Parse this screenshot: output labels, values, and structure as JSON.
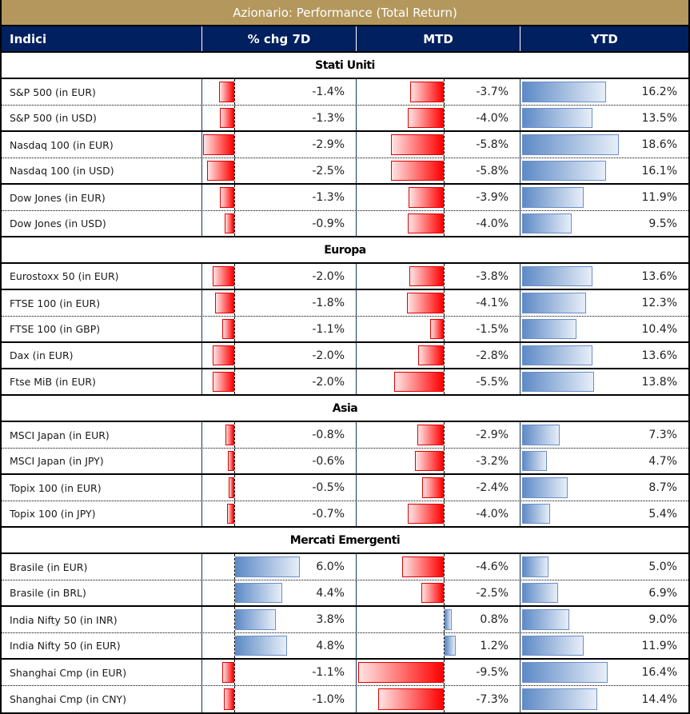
{
  "title": "Azionario: Performance (Total Return)",
  "columns": [
    "Indici",
    "% chg 7D",
    "MTD",
    "YTD"
  ],
  "colors": {
    "title_bg": "#b3975c",
    "header_bg": "#002060",
    "negative_bar": "#ff0000",
    "positive_bar": "#5e8ac6"
  },
  "sections": [
    {
      "name": "Stati Uniti",
      "rows": [
        {
          "label": "S&P 500 (in EUR)",
          "d7": -1.4,
          "mtd": -3.7,
          "ytd": 16.2,
          "d7_text": "-1.4%",
          "mtd_text": "-3.7%",
          "ytd_text": "16.2%",
          "sep": "dotted"
        },
        {
          "label": "S&P 500 (in USD)",
          "d7": -1.3,
          "mtd": -4.0,
          "ytd": 13.5,
          "d7_text": "-1.3%",
          "mtd_text": "-4.0%",
          "ytd_text": "13.5%",
          "sep": "solid"
        },
        {
          "label": "Nasdaq 100 (in EUR)",
          "d7": -2.9,
          "mtd": -5.8,
          "ytd": 18.6,
          "d7_text": "-2.9%",
          "mtd_text": "-5.8%",
          "ytd_text": "18.6%",
          "sep": "dotted"
        },
        {
          "label": "Nasdaq 100 (in USD)",
          "d7": -2.5,
          "mtd": -5.8,
          "ytd": 16.1,
          "d7_text": "-2.5%",
          "mtd_text": "-5.8%",
          "ytd_text": "16.1%",
          "sep": "solid"
        },
        {
          "label": "Dow Jones (in EUR)",
          "d7": -1.3,
          "mtd": -3.9,
          "ytd": 11.9,
          "d7_text": "-1.3%",
          "mtd_text": "-3.9%",
          "ytd_text": "11.9%",
          "sep": "dotted"
        },
        {
          "label": "Dow Jones (in USD)",
          "d7": -0.9,
          "mtd": -4.0,
          "ytd": 9.5,
          "d7_text": "-0.9%",
          "mtd_text": "-4.0%",
          "ytd_text": "9.5%",
          "sep": "solid"
        }
      ]
    },
    {
      "name": "Europa",
      "rows": [
        {
          "label": "Eurostoxx 50 (in EUR)",
          "d7": -2.0,
          "mtd": -3.8,
          "ytd": 13.6,
          "d7_text": "-2.0%",
          "mtd_text": "-3.8%",
          "ytd_text": "13.6%",
          "sep": "solid"
        },
        {
          "label": "FTSE 100 (in EUR)",
          "d7": -1.8,
          "mtd": -4.1,
          "ytd": 12.3,
          "d7_text": "-1.8%",
          "mtd_text": "-4.1%",
          "ytd_text": "12.3%",
          "sep": "dotted"
        },
        {
          "label": "FTSE 100 (in GBP)",
          "d7": -1.1,
          "mtd": -1.5,
          "ytd": 10.4,
          "d7_text": "-1.1%",
          "mtd_text": "-1.5%",
          "ytd_text": "10.4%",
          "sep": "solid"
        },
        {
          "label": "Dax (in EUR)",
          "d7": -2.0,
          "mtd": -2.8,
          "ytd": 13.6,
          "d7_text": "-2.0%",
          "mtd_text": "-2.8%",
          "ytd_text": "13.6%",
          "sep": "solid"
        },
        {
          "label": "Ftse MiB (in EUR)",
          "d7": -2.0,
          "mtd": -5.5,
          "ytd": 13.8,
          "d7_text": "-2.0%",
          "mtd_text": "-5.5%",
          "ytd_text": "13.8%",
          "sep": "solid"
        }
      ]
    },
    {
      "name": "Asia",
      "rows": [
        {
          "label": "MSCI Japan (in EUR)",
          "d7": -0.8,
          "mtd": -2.9,
          "ytd": 7.3,
          "d7_text": "-0.8%",
          "mtd_text": "-2.9%",
          "ytd_text": "7.3%",
          "sep": "dotted"
        },
        {
          "label": "MSCI Japan (in JPY)",
          "d7": -0.6,
          "mtd": -3.2,
          "ytd": 4.7,
          "d7_text": "-0.6%",
          "mtd_text": "-3.2%",
          "ytd_text": "4.7%",
          "sep": "solid"
        },
        {
          "label": "Topix 100 (in EUR)",
          "d7": -0.5,
          "mtd": -2.4,
          "ytd": 8.7,
          "d7_text": "-0.5%",
          "mtd_text": "-2.4%",
          "ytd_text": "8.7%",
          "sep": "dotted"
        },
        {
          "label": "Topix 100 (in JPY)",
          "d7": -0.7,
          "mtd": -4.0,
          "ytd": 5.4,
          "d7_text": "-0.7%",
          "mtd_text": "-4.0%",
          "ytd_text": "5.4%",
          "sep": "solid"
        }
      ]
    },
    {
      "name": "Mercati Emergenti",
      "rows": [
        {
          "label": "Brasile (in EUR)",
          "d7": 6.0,
          "mtd": -4.6,
          "ytd": 5.0,
          "d7_text": "6.0%",
          "mtd_text": "-4.6%",
          "ytd_text": "5.0%",
          "sep": "dotted"
        },
        {
          "label": "Brasile (in BRL)",
          "d7": 4.4,
          "mtd": -2.5,
          "ytd": 6.9,
          "d7_text": "4.4%",
          "mtd_text": "-2.5%",
          "ytd_text": "6.9%",
          "sep": "solid"
        },
        {
          "label": "India Nifty 50 (in INR)",
          "d7": 3.8,
          "mtd": 0.8,
          "ytd": 9.0,
          "d7_text": "3.8%",
          "mtd_text": "0.8%",
          "ytd_text": "9.0%",
          "sep": "dotted"
        },
        {
          "label": "India Nifty 50 (in EUR)",
          "d7": 4.8,
          "mtd": 1.2,
          "ytd": 11.9,
          "d7_text": "4.8%",
          "mtd_text": "1.2%",
          "ytd_text": "11.9%",
          "sep": "solid"
        },
        {
          "label": "Shanghai Cmp (in EUR)",
          "d7": -1.1,
          "mtd": -9.5,
          "ytd": 16.4,
          "d7_text": "-1.1%",
          "mtd_text": "-9.5%",
          "ytd_text": "16.4%",
          "sep": "dotted"
        },
        {
          "label": "Shanghai Cmp (in CNY)",
          "d7": -1.0,
          "mtd": -7.3,
          "ytd": 14.4,
          "d7_text": "-1.0%",
          "mtd_text": "-7.3%",
          "ytd_text": "14.4%",
          "sep": "none"
        }
      ]
    }
  ]
}
